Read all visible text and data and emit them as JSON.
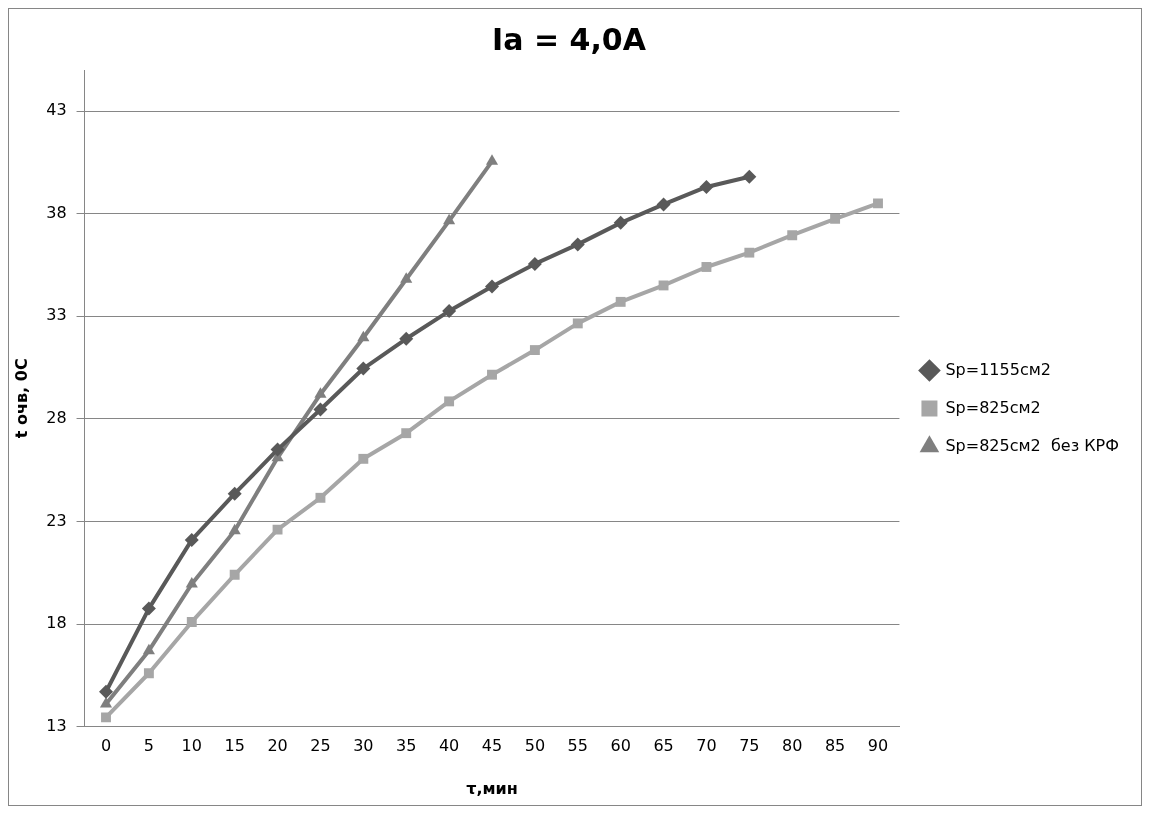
{
  "chart_data": {
    "type": "line",
    "title": "Ia = 4,0A",
    "xlabel": "τ,мин",
    "ylabel": "t очв, 0С",
    "categories": [
      "0",
      "5",
      "10",
      "15",
      "20",
      "25",
      "30",
      "35",
      "40",
      "45",
      "50",
      "55",
      "60",
      "65",
      "70",
      "75",
      "80",
      "85",
      "90"
    ],
    "series": [
      {
        "name": "Sp=1155см2",
        "color": "#595959",
        "marker": "diamond",
        "values": [
          14.7,
          18.75,
          22.1,
          24.35,
          26.5,
          28.45,
          30.45,
          31.9,
          33.25,
          34.45,
          35.55,
          36.5,
          37.55,
          38.45,
          39.3,
          39.8,
          null,
          null,
          null
        ]
      },
      {
        "name": "Sp=825см2",
        "color": "#a6a6a6",
        "marker": "square",
        "values": [
          13.45,
          15.6,
          18.1,
          20.4,
          22.6,
          24.15,
          26.05,
          27.3,
          28.85,
          30.15,
          31.35,
          32.65,
          33.7,
          34.5,
          35.4,
          36.1,
          36.95,
          37.75,
          38.5
        ]
      },
      {
        "name": "Sp=825см2  без КРФ",
        "color": "#7f7f7f",
        "marker": "triangle",
        "values": [
          14.1,
          16.7,
          19.95,
          22.55,
          26.1,
          29.2,
          31.95,
          34.8,
          37.65,
          40.55,
          null,
          null,
          null,
          null,
          null,
          null,
          null,
          null,
          null
        ]
      }
    ],
    "ylim": [
      13,
      45
    ],
    "yticks": [
      13,
      18,
      23,
      28,
      33,
      38,
      43
    ],
    "grid": "y",
    "legend": "right",
    "line_style": "solid"
  }
}
